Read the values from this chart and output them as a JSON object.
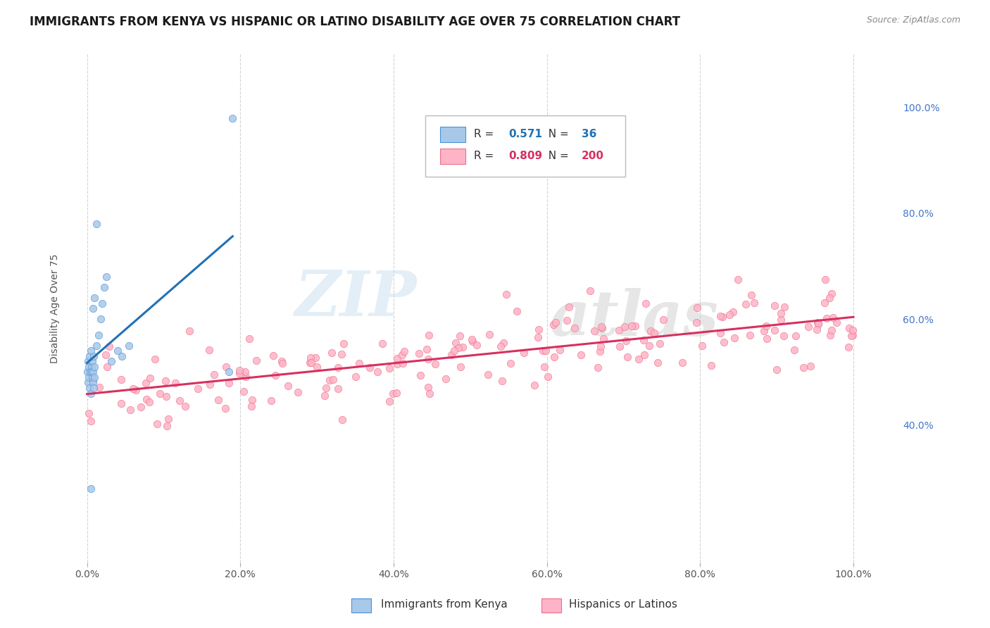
{
  "title": "IMMIGRANTS FROM KENYA VS HISPANIC OR LATINO DISABILITY AGE OVER 75 CORRELATION CHART",
  "source": "Source: ZipAtlas.com",
  "ylabel": "Disability Age Over 75",
  "watermark_zip": "ZIP",
  "watermark_atlas": "atlas",
  "legend_kenya_r": "0.571",
  "legend_kenya_n": "36",
  "legend_hispanic_r": "0.809",
  "legend_hispanic_n": "200",
  "color_kenya": "#a8c8e8",
  "color_hispanic": "#ffb3c6",
  "color_kenya_line": "#2171b5",
  "color_hispanic_line": "#d63060",
  "color_kenya_edge": "#4a90d9",
  "color_hispanic_edge": "#e8708a",
  "background_color": "#ffffff",
  "grid_color": "#d0d0d0",
  "right_tick_color": "#4477cc",
  "seed": 42
}
